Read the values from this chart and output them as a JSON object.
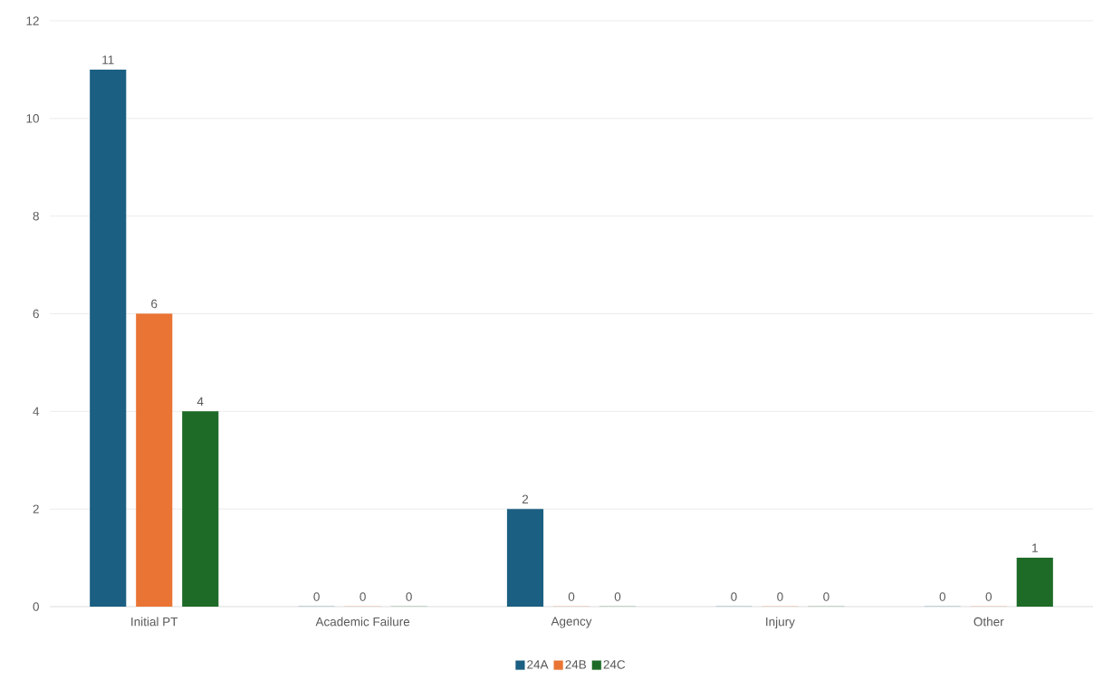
{
  "chart_data": {
    "type": "bar",
    "categories": [
      "Initial PT",
      "Academic Failure",
      "Agency",
      "Injury",
      "Other"
    ],
    "series": [
      {
        "name": "24A",
        "color": "#1b5f82",
        "values": [
          11,
          0,
          2,
          0,
          0
        ]
      },
      {
        "name": "24B",
        "color": "#ea7434",
        "values": [
          6,
          0,
          0,
          0,
          0
        ]
      },
      {
        "name": "24C",
        "color": "#1e6b28",
        "values": [
          4,
          0,
          0,
          0,
          1
        ]
      }
    ],
    "ylim": [
      0,
      12
    ],
    "yticks": [
      0,
      2,
      4,
      6,
      8,
      10,
      12
    ],
    "grid": "y",
    "legend": "bottom",
    "data_labels": true
  }
}
